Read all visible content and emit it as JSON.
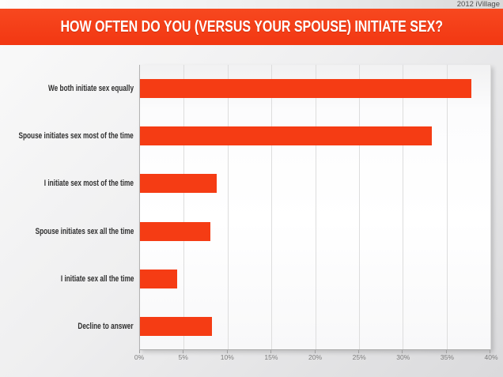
{
  "header": {
    "watermark": "2012 iVillage",
    "title": "HOW OFTEN DO YOU (VERSUS YOUR SPOUSE) INITIATE SEX?"
  },
  "colors": {
    "accent_red": "#f53c14",
    "bar_red": "#f53c14",
    "banner_text": "#ffffff",
    "category_label_text": "#2e2e2e",
    "tick_label_text": "#7c7c7c",
    "gridline": "#dddddd",
    "axis_line": "#a9a9a9",
    "background_gray": "#e9e9eb",
    "plot_background": "#ffffff"
  },
  "chart_data": {
    "type": "bar",
    "orientation": "horizontal",
    "title": "HOW OFTEN DO YOU (VERSUS YOUR SPOUSE) INITIATE SEX?",
    "categories": [
      "We both initiate sex equally",
      "Spouse initiates sex most of the time",
      "I initiate sex most of the time",
      "Spouse initiates sex all the time",
      "I initiate sex all the time",
      "Decline to answer"
    ],
    "values": [
      37.8,
      33.3,
      8.8,
      8.0,
      4.2,
      8.2
    ],
    "unit": "%",
    "xlabel": "",
    "ylabel": "",
    "xlim": [
      0,
      40
    ],
    "xticks": [
      0,
      5,
      10,
      15,
      20,
      25,
      30,
      35,
      40
    ],
    "tick_labels": [
      "0%",
      "5%",
      "10%",
      "15%",
      "20%",
      "25%",
      "30%",
      "35%",
      "40%"
    ],
    "grid": "vertical-only",
    "legend": "none",
    "bar_color": "#f53c14",
    "source_note": "2012 iVillage"
  }
}
